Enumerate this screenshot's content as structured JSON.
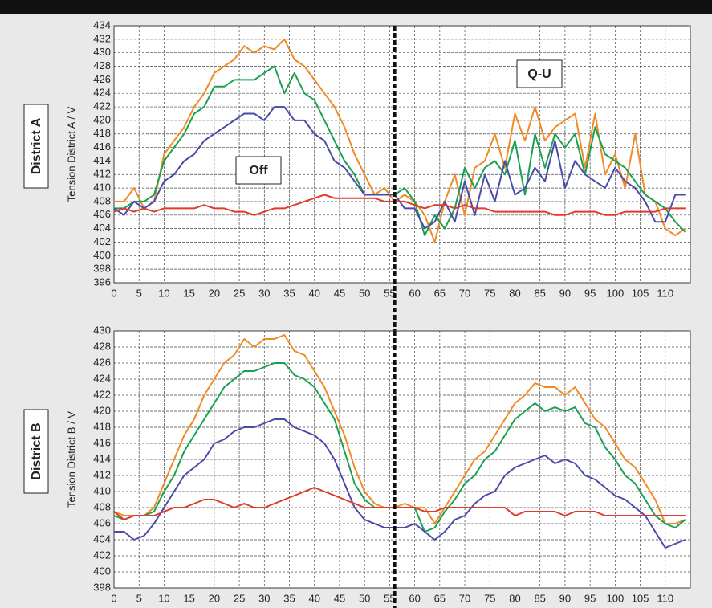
{
  "chart_data": [
    {
      "type": "line",
      "panel_label": "District A",
      "ylabel": "Tension District A / V",
      "annotations": [
        "Off",
        "Q-U"
      ],
      "vline": 56,
      "grid": true,
      "xlim": [
        0,
        115
      ],
      "xticks": [
        0,
        5,
        10,
        15,
        20,
        25,
        30,
        35,
        40,
        45,
        50,
        55,
        60,
        65,
        70,
        75,
        80,
        85,
        90,
        95,
        100,
        105,
        110
      ],
      "ylim": [
        396,
        434
      ],
      "yticks": [
        396,
        398,
        400,
        402,
        404,
        406,
        408,
        410,
        412,
        414,
        416,
        418,
        420,
        422,
        424,
        426,
        428,
        430,
        432,
        434
      ],
      "x": [
        0,
        2,
        4,
        6,
        8,
        10,
        12,
        14,
        16,
        18,
        20,
        22,
        24,
        26,
        28,
        30,
        32,
        34,
        36,
        38,
        40,
        42,
        44,
        46,
        48,
        50,
        52,
        54,
        56,
        58,
        60,
        62,
        64,
        66,
        68,
        70,
        72,
        74,
        76,
        78,
        80,
        82,
        84,
        86,
        88,
        90,
        92,
        94,
        96,
        98,
        100,
        102,
        104,
        106,
        108,
        110,
        112,
        114
      ],
      "series": [
        {
          "color": "#f08a24",
          "values": [
            408,
            408,
            410,
            407,
            408,
            415,
            417,
            419,
            422,
            424,
            427,
            428,
            429,
            431,
            430,
            431,
            430.5,
            432,
            429,
            428,
            426,
            424,
            422,
            419,
            415,
            412,
            409,
            410,
            408,
            409,
            408,
            406,
            402,
            408,
            412,
            406,
            413,
            414,
            418,
            413,
            421,
            417,
            422,
            417,
            419,
            420,
            421,
            413,
            421,
            412,
            415,
            410,
            418,
            409,
            408,
            404,
            403,
            404
          ]
        },
        {
          "color": "#1aa050",
          "values": [
            407,
            407,
            408,
            408,
            409,
            414,
            416,
            418,
            421,
            422,
            425,
            425,
            426,
            426,
            426,
            427,
            428,
            424,
            427,
            424,
            423,
            420,
            417,
            414,
            412,
            409,
            409,
            409,
            409,
            410,
            408,
            403,
            406,
            404,
            407,
            413,
            410,
            413,
            414,
            412,
            417,
            409,
            418,
            413,
            418,
            416,
            418,
            412,
            419,
            415,
            414,
            413,
            411,
            409,
            408,
            407,
            405,
            403.5
          ]
        },
        {
          "color": "#4a4aa8",
          "values": [
            407,
            406,
            408,
            407,
            408,
            411,
            412,
            414,
            415,
            417,
            418,
            419,
            420,
            421,
            421,
            420,
            422,
            422,
            420,
            420,
            418,
            417,
            414,
            413,
            411,
            409,
            409,
            409,
            409,
            407,
            407,
            404,
            405,
            408,
            405,
            411,
            406,
            412,
            408,
            414,
            409,
            410,
            413,
            411,
            417,
            410,
            414,
            412,
            411,
            410,
            413,
            411,
            410,
            408,
            405,
            405,
            409,
            409
          ]
        },
        {
          "color": "#e03a2a",
          "values": [
            406.5,
            407,
            406.5,
            407,
            406.5,
            407,
            407,
            407,
            407,
            407.5,
            407,
            407,
            406.5,
            406.5,
            406,
            406.5,
            407,
            407,
            407.5,
            408,
            408.5,
            409,
            408.5,
            408.5,
            408.5,
            408.5,
            408.5,
            408,
            408,
            408,
            407.5,
            407,
            407.5,
            407.5,
            407,
            407.5,
            407,
            407,
            406.5,
            406.5,
            406.5,
            406.5,
            406.5,
            406.5,
            406,
            406,
            406.5,
            406.5,
            406.5,
            406,
            406,
            406.5,
            406.5,
            406.5,
            406.5,
            407,
            407,
            407
          ]
        }
      ]
    },
    {
      "type": "line",
      "panel_label": "District B",
      "ylabel": "Tension District B / V",
      "vline": 56,
      "grid": true,
      "xlim": [
        0,
        115
      ],
      "xticks": [
        0,
        5,
        10,
        15,
        20,
        25,
        30,
        35,
        40,
        45,
        50,
        55,
        60,
        65,
        70,
        75,
        80,
        85,
        90,
        95,
        100,
        105,
        110
      ],
      "ylim": [
        398,
        430
      ],
      "yticks": [
        398,
        400,
        402,
        404,
        406,
        408,
        410,
        412,
        414,
        416,
        418,
        420,
        422,
        424,
        426,
        428,
        430
      ],
      "x": [
        0,
        2,
        4,
        6,
        8,
        10,
        12,
        14,
        16,
        18,
        20,
        22,
        24,
        26,
        28,
        30,
        32,
        34,
        36,
        38,
        40,
        42,
        44,
        46,
        48,
        50,
        52,
        54,
        56,
        58,
        60,
        62,
        64,
        66,
        68,
        70,
        72,
        74,
        76,
        78,
        80,
        82,
        84,
        86,
        88,
        90,
        92,
        94,
        96,
        98,
        100,
        102,
        104,
        106,
        108,
        110,
        112,
        114
      ],
      "series": [
        {
          "color": "#f08a24",
          "values": [
            407.5,
            407,
            407,
            407,
            408,
            411,
            414,
            417,
            419,
            422,
            424,
            426,
            427,
            429,
            428,
            429,
            429,
            429.5,
            427.5,
            427,
            425,
            423,
            420,
            417,
            413,
            410,
            408.5,
            408,
            408,
            408.5,
            408,
            408,
            406,
            408,
            410,
            412,
            414,
            415,
            417,
            419,
            421,
            422,
            423.5,
            423,
            423,
            422,
            423,
            421,
            419,
            418,
            416,
            414,
            413,
            411,
            409,
            406,
            406,
            406.5
          ]
        },
        {
          "color": "#1aa050",
          "values": [
            407,
            406.5,
            407,
            407,
            407.5,
            410,
            412,
            415,
            417,
            419,
            421,
            423,
            424,
            425,
            425,
            425.5,
            426,
            426,
            424.5,
            424,
            423,
            421,
            419,
            415,
            411,
            409,
            408,
            408,
            408,
            408,
            408,
            405,
            405.5,
            407.5,
            409,
            411,
            412,
            414,
            415,
            417,
            419,
            420,
            421,
            420,
            420.5,
            420,
            420.5,
            418.5,
            418,
            415.5,
            414,
            412,
            411,
            409,
            407,
            406,
            405.5,
            406.5
          ]
        },
        {
          "color": "#4a4aa8",
          "values": [
            405,
            405,
            404,
            404.5,
            406,
            408,
            410,
            412,
            413,
            414,
            416,
            416.5,
            417.5,
            418,
            418,
            418.5,
            419,
            419,
            418,
            417.5,
            417,
            416,
            414,
            411,
            408,
            406.5,
            406,
            405.5,
            405.5,
            405.5,
            406,
            405,
            404,
            405,
            406.5,
            407,
            408.5,
            409.5,
            410,
            412,
            413,
            413.5,
            414,
            414.5,
            413.5,
            414,
            413.5,
            412,
            411.5,
            410.5,
            409.5,
            409,
            408,
            407,
            405,
            403,
            403.5,
            404
          ]
        },
        {
          "color": "#e03a2a",
          "values": [
            407.5,
            406.5,
            407,
            407,
            407,
            407.5,
            408,
            408,
            408.5,
            409,
            409,
            408.5,
            408,
            408.5,
            408,
            408,
            408.5,
            409,
            409.5,
            410,
            410.5,
            410,
            409.5,
            409,
            408.5,
            408,
            408,
            408,
            408,
            408,
            408,
            407.5,
            407.5,
            408,
            408,
            408,
            408,
            408,
            408,
            408,
            407,
            407.5,
            407.5,
            407.5,
            407.5,
            407,
            407.5,
            407.5,
            407.5,
            407,
            407,
            407,
            407,
            407,
            407,
            407,
            407,
            407
          ]
        }
      ]
    }
  ]
}
